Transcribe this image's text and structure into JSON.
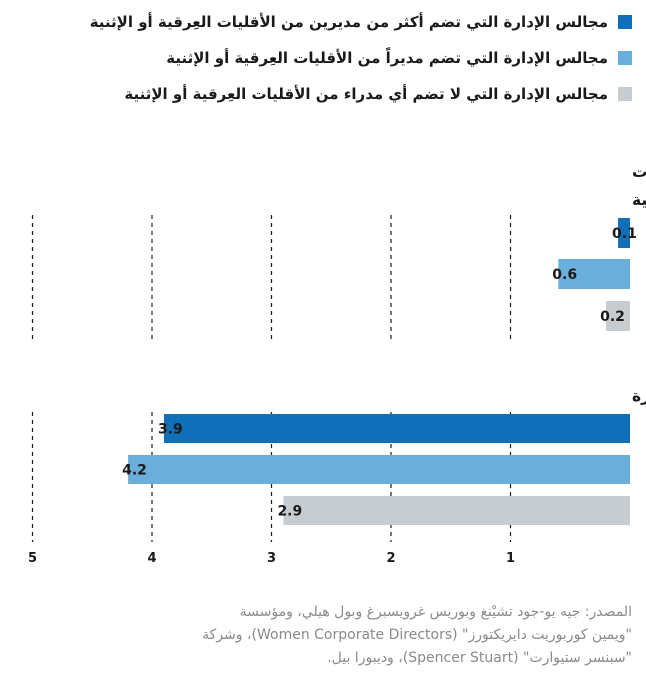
{
  "colors": {
    "dark_blue": "#0f6fb8",
    "light_blue": "#6aaedc",
    "gray": "#c7ccd1"
  },
  "legend": [
    {
      "label": "مجالس الإدارة التي تضم أكثر من مديرين من الأقليات العِرقية أو الإثنية",
      "color": "#0f6fb8"
    },
    {
      "label": "مجالس الإدارة التي تضم مديراً من الأقليات العِرقية أو الإثنية",
      "color": "#6aaedc"
    },
    {
      "label": "مجالس الإدارة التي لا تضم أي مدراء من الأقليات العِرقية أو الإثنية",
      "color": "#c7ccd1"
    }
  ],
  "chart_data": [
    {
      "type": "bar",
      "orientation": "horizontal",
      "title_lines": [
        "عدد المرشحين الذين يُنظر في تعيينهم لكل وظيفة شاغرة وينتمون لأقليات",
        "عِرقية أو إثنية"
      ],
      "series": [
        {
          "name": "مجالس الإدارة التي تضم أكثر من مديرين من الأقليات العِرقية أو الإثنية",
          "value": 0.1,
          "label": "0.1",
          "color": "#0f6fb8"
        },
        {
          "name": "مجالس الإدارة التي تضم مديراً من الأقليات العِرقية أو الإثنية",
          "value": 0.6,
          "label": "0.6",
          "color": "#6aaedc"
        },
        {
          "name": "مجالس الإدارة التي لا تضم أي مدراء من الأقليات العِرقية أو الإثنية",
          "value": 0.2,
          "label": "0.2",
          "color": "#c7ccd1"
        }
      ],
      "xlim": [
        0,
        5
      ]
    },
    {
      "type": "bar",
      "orientation": "horizontal",
      "title_lines": [
        "العدد الإجمالي للمرشحين الذين يُنظر في تعيينهم لكل وظيفة شاغرة"
      ],
      "series": [
        {
          "name": "مجالس الإدارة التي تضم أكثر من مديرين من الأقليات العِرقية أو الإثنية",
          "value": 3.9,
          "label": "3.9",
          "color": "#0f6fb8"
        },
        {
          "name": "مجالس الإدارة التي تضم مديراً من الأقليات العِرقية أو الإثنية",
          "value": 4.2,
          "label": "4.2",
          "color": "#6aaedc"
        },
        {
          "name": "مجالس الإدارة التي لا تضم أي مدراء من الأقليات العِرقية أو الإثنية",
          "value": 2.9,
          "label": "2.9",
          "color": "#c7ccd1"
        }
      ],
      "xlim": [
        0,
        5
      ]
    }
  ],
  "axis": {
    "ticks": [
      1,
      2,
      3,
      4,
      5
    ],
    "tick_labels": [
      "1",
      "2",
      "3",
      "4",
      "5"
    ]
  },
  "source_lines": [
    "المصدر: جيه يو-جود تشيْنغ وبوريس غرويسبرغ وبول هيلي، ومؤسسة",
    "\"ويمين كوربوريت دايريكتورز\" (Women Corporate Directors)، وشركة",
    "\"سبنسر ستيوارت\" (Spencer Stuart)، وديبورا بيل."
  ]
}
